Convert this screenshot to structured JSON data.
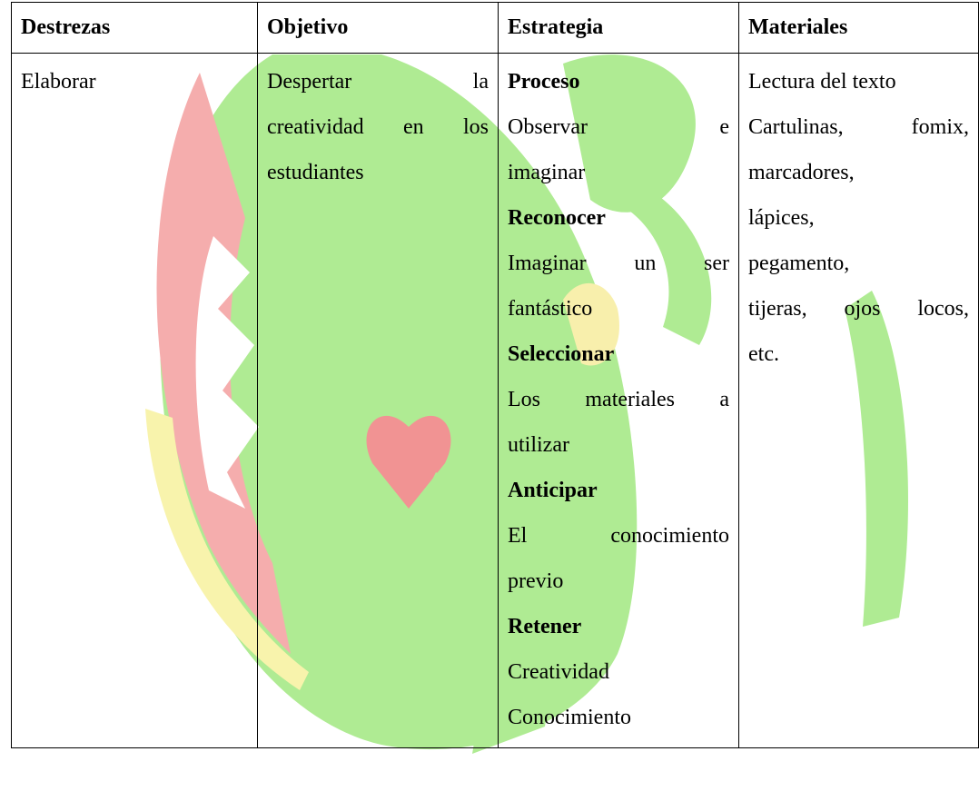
{
  "table": {
    "header": [
      "Destrezas",
      "Objetivo",
      "Estrategia",
      "Materiales"
    ],
    "destrezas": [
      [
        "Elaborar"
      ]
    ],
    "objetivo": [
      [
        "Despertar la",
        "creatividad en los",
        "estudiantes"
      ]
    ],
    "estrategia": [
      {
        "heading": "Proceso",
        "paragraphs": [
          [
            "Observar e",
            "imaginar"
          ]
        ]
      },
      {
        "heading": "Reconocer",
        "paragraphs": [
          [
            "Imaginar un ser",
            "fantástico"
          ]
        ]
      },
      {
        "heading": "Seleccionar",
        "paragraphs": [
          [
            "Los materiales a",
            "utilizar"
          ]
        ]
      },
      {
        "heading": "Anticipar",
        "paragraphs": [
          [
            "El conocimiento",
            "previo"
          ]
        ]
      },
      {
        "heading": "Retener",
        "paragraphs": [
          [
            "Creatividad"
          ],
          [
            "Conocimiento"
          ]
        ]
      }
    ],
    "materiales": [
      [
        "Lectura del texto"
      ],
      [
        "Cartulinas, fomix,",
        "marcadores,",
        "lápices,",
        "pegamento,",
        "tijeras, ojos locos,",
        "etc."
      ]
    ]
  }
}
